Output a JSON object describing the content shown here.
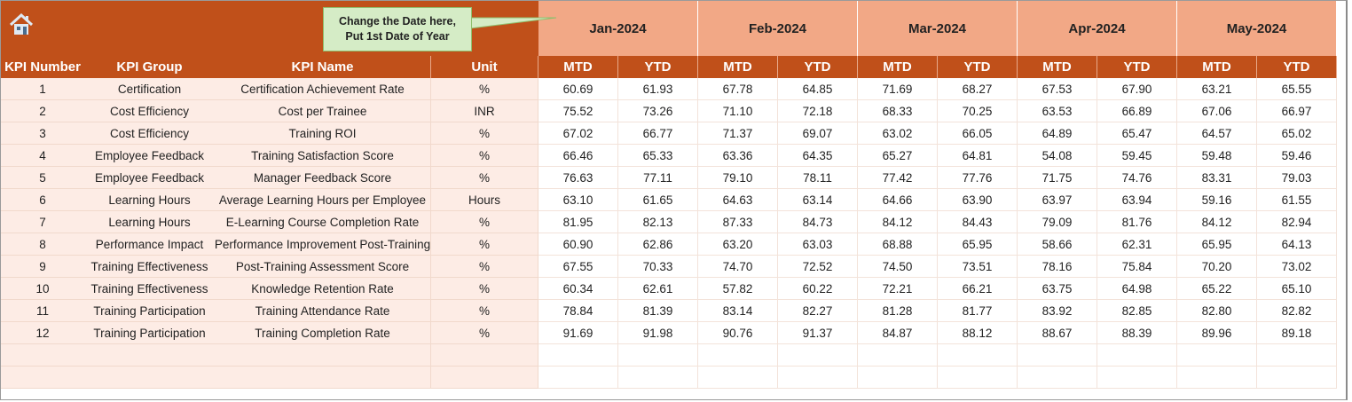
{
  "callout": {
    "line1": "Change the Date here,",
    "line2": "Put 1st Date of Year"
  },
  "months": [
    "Jan-2024",
    "Feb-2024",
    "Mar-2024",
    "Apr-2024",
    "May-2024"
  ],
  "headers": {
    "kpi_number": "KPI Number",
    "kpi_group": "KPI Group",
    "kpi_name": "KPI Name",
    "unit": "Unit",
    "mtd": "MTD",
    "ytd": "YTD"
  },
  "colors": {
    "header": "#c0501a",
    "month": "#f2a886",
    "pink": "#fdece5"
  },
  "rows": [
    {
      "num": "1",
      "group": "Certification",
      "name": "Certification Achievement Rate",
      "unit": "%",
      "values": [
        "60.69",
        "61.93",
        "67.78",
        "64.85",
        "71.69",
        "68.27",
        "67.53",
        "67.90",
        "63.21",
        "65.55"
      ]
    },
    {
      "num": "2",
      "group": "Cost Efficiency",
      "name": "Cost per Trainee",
      "unit": "INR",
      "values": [
        "75.52",
        "73.26",
        "71.10",
        "72.18",
        "68.33",
        "70.25",
        "63.53",
        "66.89",
        "67.06",
        "66.97"
      ]
    },
    {
      "num": "3",
      "group": "Cost Efficiency",
      "name": "Training ROI",
      "unit": "%",
      "values": [
        "67.02",
        "66.77",
        "71.37",
        "69.07",
        "63.02",
        "66.05",
        "64.89",
        "65.47",
        "64.57",
        "65.02"
      ]
    },
    {
      "num": "4",
      "group": "Employee Feedback",
      "name": "Training Satisfaction Score",
      "unit": "%",
      "values": [
        "66.46",
        "65.33",
        "63.36",
        "64.35",
        "65.27",
        "64.81",
        "54.08",
        "59.45",
        "59.48",
        "59.46"
      ]
    },
    {
      "num": "5",
      "group": "Employee Feedback",
      "name": "Manager Feedback Score",
      "unit": "%",
      "values": [
        "76.63",
        "77.11",
        "79.10",
        "78.11",
        "77.42",
        "77.76",
        "71.75",
        "74.76",
        "83.31",
        "79.03"
      ]
    },
    {
      "num": "6",
      "group": "Learning Hours",
      "name": "Average Learning Hours per Employee",
      "unit": "Hours",
      "values": [
        "63.10",
        "61.65",
        "64.63",
        "63.14",
        "64.66",
        "63.90",
        "63.97",
        "63.94",
        "59.16",
        "61.55"
      ]
    },
    {
      "num": "7",
      "group": "Learning Hours",
      "name": "E-Learning Course Completion Rate",
      "unit": "%",
      "values": [
        "81.95",
        "82.13",
        "87.33",
        "84.73",
        "84.12",
        "84.43",
        "79.09",
        "81.76",
        "84.12",
        "82.94"
      ]
    },
    {
      "num": "8",
      "group": "Performance Impact",
      "name": "Performance Improvement Post-Training",
      "unit": "%",
      "values": [
        "60.90",
        "62.86",
        "63.20",
        "63.03",
        "68.88",
        "65.95",
        "58.66",
        "62.31",
        "65.95",
        "64.13"
      ]
    },
    {
      "num": "9",
      "group": "Training Effectiveness",
      "name": "Post-Training Assessment Score",
      "unit": "%",
      "values": [
        "67.55",
        "70.33",
        "74.70",
        "72.52",
        "74.50",
        "73.51",
        "78.16",
        "75.84",
        "70.20",
        "73.02"
      ]
    },
    {
      "num": "10",
      "group": "Training Effectiveness",
      "name": "Knowledge Retention Rate",
      "unit": "%",
      "values": [
        "60.34",
        "62.61",
        "57.82",
        "60.22",
        "72.21",
        "66.21",
        "63.75",
        "64.98",
        "65.22",
        "65.10"
      ]
    },
    {
      "num": "11",
      "group": "Training Participation",
      "name": "Training Attendance Rate",
      "unit": "%",
      "values": [
        "78.84",
        "81.39",
        "83.14",
        "82.27",
        "81.28",
        "81.77",
        "83.92",
        "82.85",
        "82.80",
        "82.82"
      ]
    },
    {
      "num": "12",
      "group": "Training Participation",
      "name": "Training Completion Rate",
      "unit": "%",
      "values": [
        "91.69",
        "91.98",
        "90.76",
        "91.37",
        "84.87",
        "88.12",
        "88.67",
        "88.39",
        "89.96",
        "89.18"
      ]
    }
  ]
}
